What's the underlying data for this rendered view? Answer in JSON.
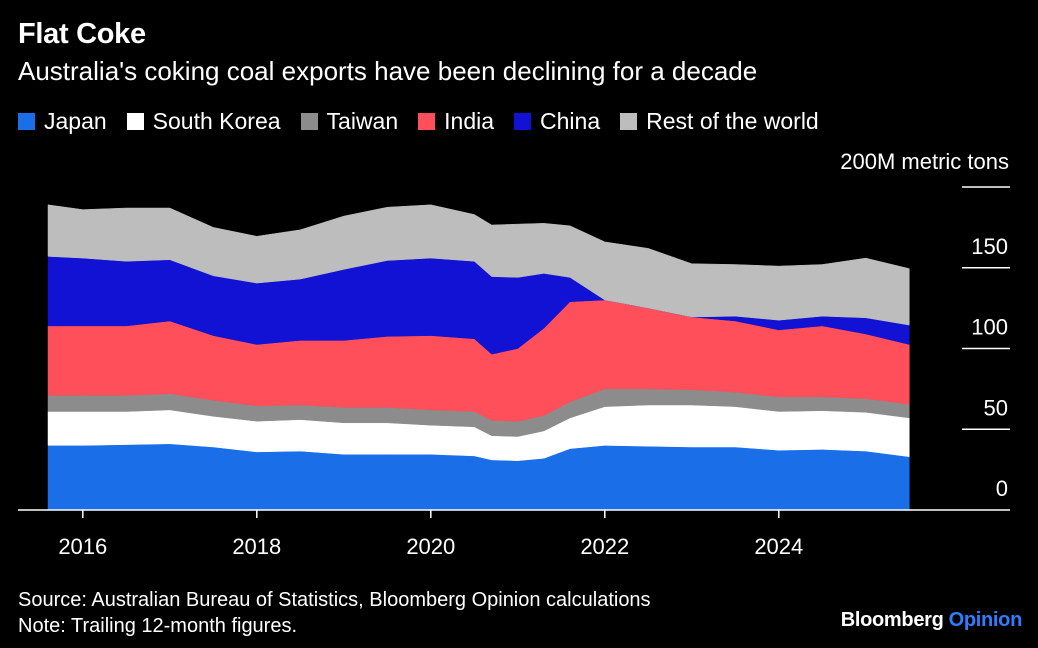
{
  "header": {
    "title": "Flat Coke",
    "subtitle": "Australia's coking coal exports have been declining for a decade"
  },
  "unit_label": "200M metric tons",
  "footer": {
    "source": "Source: Australian Bureau of Statistics, Bloomberg Opinion calculations",
    "note": "Note: Trailing 12-month figures."
  },
  "brand": {
    "name": "Bloomberg",
    "suffix": "Opinion"
  },
  "colors": {
    "background": "#000000",
    "japan": "#1a6fe8",
    "south_korea": "#ffffff",
    "taiwan": "#8c8c8c",
    "india": "#ff4f5b",
    "china": "#1212d4",
    "rest_of_world": "#bdbdbd",
    "brand_accent": "#2d7dff"
  },
  "chart_data": {
    "type": "area",
    "stacked": true,
    "title": "Flat Coke",
    "subtitle": "Australia's coking coal exports have been declining for a decade",
    "ylabel": "200M metric tons",
    "ylim": [
      0,
      200
    ],
    "yticks": [
      0,
      50,
      100,
      150
    ],
    "xlim": [
      2015.6,
      2025.6
    ],
    "xticks": [
      2016,
      2018,
      2020,
      2022,
      2024
    ],
    "legend_position": "top",
    "grid": false,
    "x": [
      2015.6,
      2016.0,
      2016.5,
      2017.0,
      2017.5,
      2018.0,
      2018.5,
      2019.0,
      2019.5,
      2020.0,
      2020.5,
      2020.7,
      2021.0,
      2021.3,
      2021.6,
      2022.0,
      2022.5,
      2023.0,
      2023.5,
      2024.0,
      2024.5,
      2025.0,
      2025.5
    ],
    "series": [
      {
        "name": "Japan",
        "color": "#1a6fe8",
        "values": [
          40,
          40,
          40.5,
          41,
          39,
          36,
          36.5,
          34.5,
          34.5,
          34.5,
          33.5,
          31,
          30.5,
          32,
          38,
          40,
          39.5,
          39,
          39,
          37,
          37.5,
          36.5,
          33
        ]
      },
      {
        "name": "South Korea",
        "color": "#ffffff",
        "values": [
          21,
          21,
          20.5,
          21,
          19,
          19,
          19.5,
          19.5,
          19.5,
          18,
          18,
          15,
          15,
          17,
          19,
          24,
          25.5,
          26,
          25,
          24,
          24,
          24,
          24
        ]
      },
      {
        "name": "Taiwan",
        "color": "#8c8c8c",
        "values": [
          10,
          10,
          10,
          10,
          10,
          9.5,
          9,
          9.5,
          9.5,
          9.5,
          9.5,
          9.5,
          9.5,
          9.5,
          10,
          11,
          10,
          9.5,
          9,
          9,
          8.5,
          8.5,
          8.5
        ]
      },
      {
        "name": "India",
        "color": "#ff4f5b",
        "values": [
          43,
          43,
          43,
          45,
          40,
          38,
          40,
          41.5,
          44,
          46,
          45,
          41,
          45,
          54,
          62,
          55,
          50,
          45,
          44,
          41.5,
          44,
          40,
          37
        ]
      },
      {
        "name": "China",
        "color": "#1212d4",
        "values": [
          43,
          42,
          40,
          38,
          37,
          38,
          38,
          44,
          47,
          48,
          48,
          48,
          44,
          34,
          15,
          0,
          0,
          0,
          3,
          6,
          6,
          10,
          12
        ]
      },
      {
        "name": "Rest of the world",
        "color": "#bdbdbd",
        "values": [
          32,
          30,
          33,
          32,
          30,
          29,
          30.5,
          33,
          33,
          33,
          29,
          32,
          33,
          31,
          32,
          36,
          37,
          33,
          32,
          33.5,
          32,
          37,
          35
        ]
      }
    ]
  }
}
